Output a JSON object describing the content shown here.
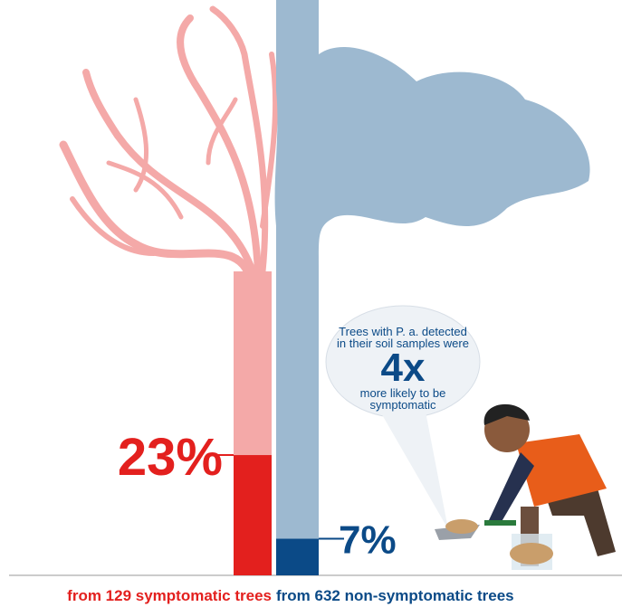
{
  "chart_data": {
    "type": "bar",
    "categories": [
      "from 129 symptomatic trees",
      "from 632 non-symptomatic trees"
    ],
    "values": [
      23,
      7
    ],
    "value_labels": [
      "23%",
      "7%"
    ],
    "colors": [
      "#e3201e",
      "#0b4a87"
    ],
    "ylim": [
      0,
      100
    ],
    "annotation": {
      "text_before": "Trees with P. a. detected in their soil samples were",
      "figure": "4x",
      "text_after": "more likely to be symptomatic"
    }
  }
}
